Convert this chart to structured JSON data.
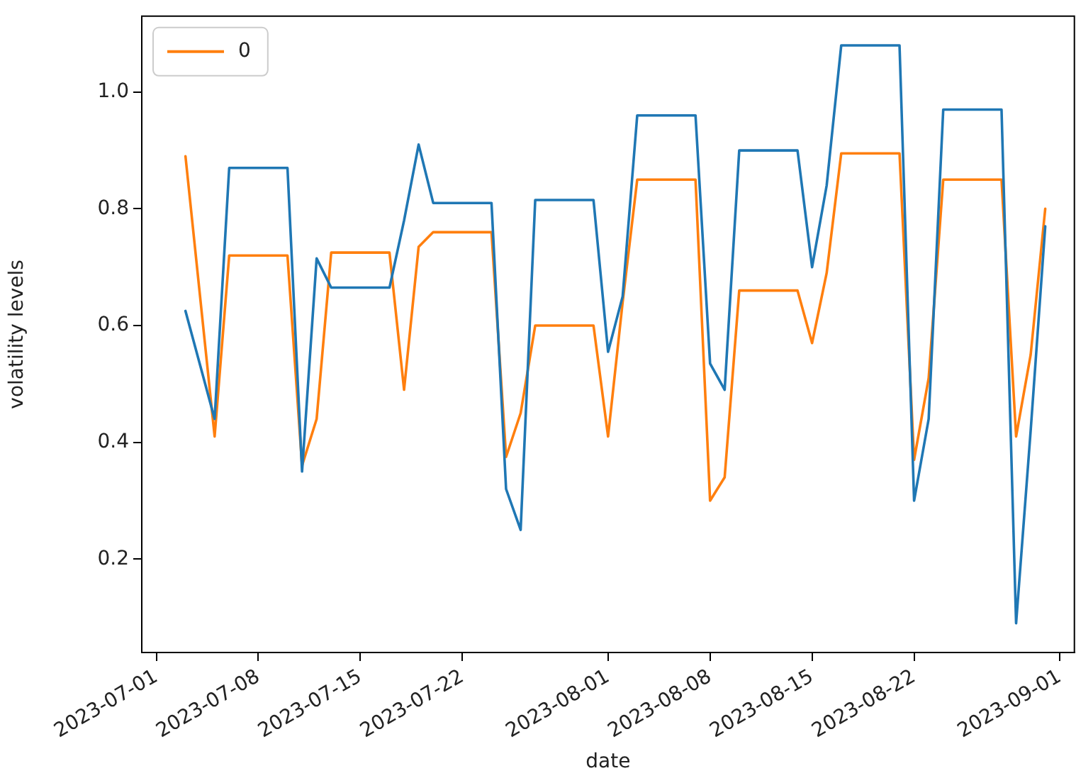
{
  "chart_data": {
    "type": "line",
    "xlabel": "date",
    "ylabel": "volatility levels",
    "x": [
      "2023-07-03",
      "2023-07-05",
      "2023-07-06",
      "2023-07-07",
      "2023-07-10",
      "2023-07-11",
      "2023-07-12",
      "2023-07-13",
      "2023-07-14",
      "2023-07-17",
      "2023-07-18",
      "2023-07-19",
      "2023-07-20",
      "2023-07-21",
      "2023-07-24",
      "2023-07-25",
      "2023-07-26",
      "2023-07-27",
      "2023-07-28",
      "2023-07-31",
      "2023-08-01",
      "2023-08-02",
      "2023-08-03",
      "2023-08-04",
      "2023-08-07",
      "2023-08-08",
      "2023-08-09",
      "2023-08-10",
      "2023-08-11",
      "2023-08-14",
      "2023-08-15",
      "2023-08-16",
      "2023-08-17",
      "2023-08-18",
      "2023-08-21",
      "2023-08-22",
      "2023-08-23",
      "2023-08-24",
      "2023-08-25",
      "2023-08-28",
      "2023-08-29",
      "2023-08-30",
      "2023-08-31"
    ],
    "series": [
      {
        "color": "#1f77b4",
        "values": [
          0.625,
          0.44,
          0.87,
          0.87,
          0.87,
          0.35,
          0.715,
          0.665,
          0.665,
          0.665,
          0.78,
          0.91,
          0.81,
          0.81,
          0.81,
          0.32,
          0.25,
          0.815,
          0.815,
          0.815,
          0.555,
          0.65,
          0.96,
          0.96,
          0.96,
          0.535,
          0.49,
          0.9,
          0.9,
          0.9,
          0.7,
          0.84,
          1.08,
          1.08,
          1.08,
          0.3,
          0.44,
          0.97,
          0.97,
          0.97,
          0.09,
          0.42,
          0.77
        ]
      },
      {
        "name": "0",
        "color": "#ff7f0e",
        "values": [
          0.89,
          0.41,
          0.72,
          0.72,
          0.72,
          0.36,
          0.44,
          0.725,
          0.725,
          0.725,
          0.49,
          0.735,
          0.76,
          0.76,
          0.76,
          0.375,
          0.45,
          0.6,
          0.6,
          0.6,
          0.41,
          0.64,
          0.85,
          0.85,
          0.85,
          0.3,
          0.34,
          0.66,
          0.66,
          0.66,
          0.57,
          0.69,
          0.895,
          0.895,
          0.895,
          0.37,
          0.51,
          0.85,
          0.85,
          0.85,
          0.41,
          0.55,
          0.8
        ]
      }
    ],
    "xlim": [
      "2023-06-30",
      "2023-09-02"
    ],
    "xticks": [
      "2023-07-01",
      "2023-07-08",
      "2023-07-15",
      "2023-07-22",
      "2023-08-01",
      "2023-08-08",
      "2023-08-15",
      "2023-08-22",
      "2023-09-01"
    ],
    "ylim": [
      0.04,
      1.13
    ],
    "yticks": [
      0.2,
      0.4,
      0.6,
      0.8,
      {
        "value": 1,
        "label": "1.0"
      }
    ],
    "legend": "top left",
    "grid": false,
    "marker": "none",
    "line_style": "solid"
  }
}
